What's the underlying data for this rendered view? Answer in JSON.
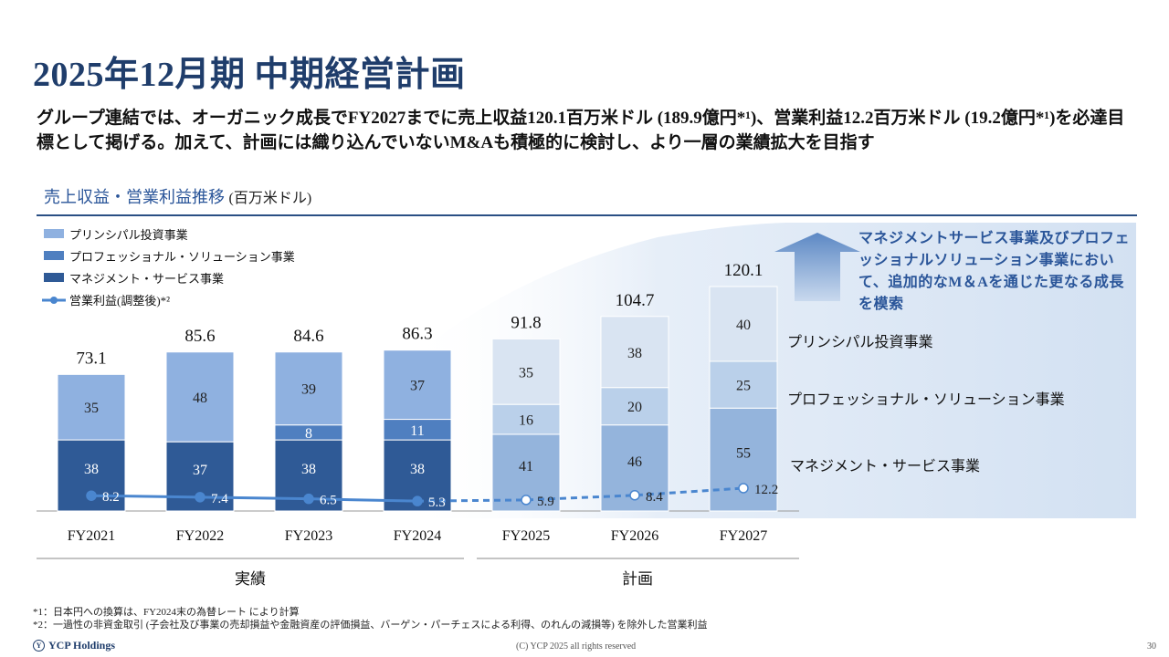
{
  "title": "2025年12月期 中期経営計画",
  "subtitle": "グループ連結では、オーガニック成長でFY2027までに売上収益120.1百万米ドル (189.9億円*¹)、営業利益12.2百万米ドル (19.2億円*¹)を必達目標として掲げる。加えて、計画には織り込んでいないM&Aも積極的に検討し、より一層の業績拡大を目指す",
  "section": {
    "title": "売上収益・営業利益推移",
    "unit": "(百万米ドル)"
  },
  "callout": "マネジメントサービス事業及びプロフェッショナルソリューション事業において、追加的なM＆Aを通じた更なる成長を模索",
  "right_labels": [
    "プリンシパル投資事業",
    "プロフェッショナル・ソリューション事業",
    "マネジメント・サービス事業"
  ],
  "period_labels": {
    "actual": "実績",
    "plan": "計画"
  },
  "footnotes": [
    "*1：日本円への換算は、FY2024末の為替レート により計算",
    "*2：一過性の非資金取引 (子会社及び事業の売却損益や金融資産の評価損益、バーゲン・パーチェスによる利得、のれんの減損等) を除外した営業利益"
  ],
  "footer": {
    "logo": "YCP Holdings",
    "logo_mark": "Y",
    "copyright": "(C) YCP 2025 all rights reserved",
    "page": "30"
  },
  "colors": {
    "principal": "#8fb1e0",
    "professional": "#4f7fc0",
    "management": "#2f5a96",
    "principal_plan": "#d9e4f2",
    "professional_plan": "#bad0ea",
    "management_plan": "#94b4dc",
    "line": "#4a86cf",
    "title": "#1f3d6b"
  },
  "chart_data": {
    "type": "bar",
    "stacked": true,
    "categories": [
      "FY2021",
      "FY2022",
      "FY2023",
      "FY2024",
      "FY2025",
      "FY2026",
      "FY2027"
    ],
    "groups": [
      {
        "label": "実績",
        "categories": [
          "FY2021",
          "FY2022",
          "FY2023",
          "FY2024"
        ]
      },
      {
        "label": "計画",
        "categories": [
          "FY2025",
          "FY2026",
          "FY2027"
        ]
      }
    ],
    "series": [
      {
        "name": "マネジメント・サービス事業",
        "values": [
          38,
          37,
          38,
          38,
          41,
          46,
          55
        ]
      },
      {
        "name": "プロフェッショナル・ソリューション事業",
        "values": [
          0,
          0,
          8,
          11,
          16,
          20,
          25
        ]
      },
      {
        "name": "プリンシパル投資事業",
        "values": [
          35,
          48,
          39,
          37,
          35,
          38,
          40
        ]
      }
    ],
    "totals": [
      73.1,
      85.6,
      84.6,
      86.3,
      91.8,
      104.7,
      120.1
    ],
    "line": {
      "name": "営業利益(調整後)*²",
      "values": [
        8.2,
        7.4,
        6.5,
        5.3,
        5.9,
        8.4,
        12.2
      ],
      "dashed_from": "FY2024"
    },
    "legend": [
      "プリンシパル投資事業",
      "プロフェッショナル・ソリューション事業",
      "マネジメント・サービス事業",
      "営業利益(調整後)*²"
    ],
    "legend_position": "top-left"
  }
}
